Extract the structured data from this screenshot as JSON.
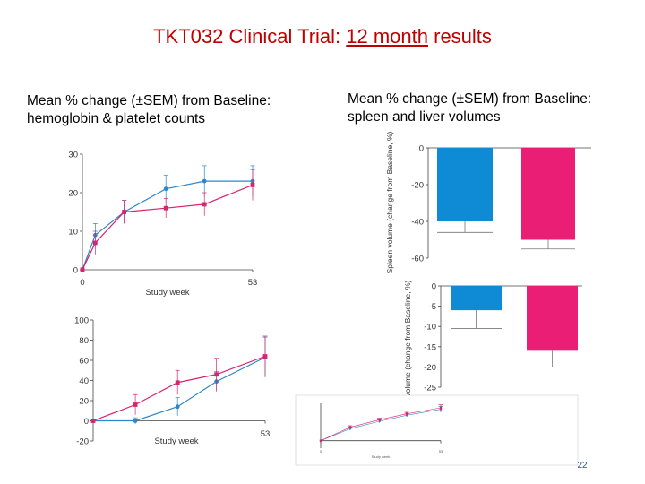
{
  "slide": {
    "title_prefix": "TKT032 Clinical Trial: ",
    "title_underlined": "12 month",
    "title_suffix": " results",
    "left_heading_line1": "Mean % change (±SEM) from Baseline:",
    "left_heading_line2": "hemoglobin & platelet counts",
    "right_heading_line1": "Mean % change (±SEM) from Baseline:",
    "right_heading_line2": "spleen and liver volumes",
    "page_number": "22"
  },
  "colors": {
    "title": "#c00000",
    "series_blue": "#2e86c8",
    "series_magenta": "#d6246e",
    "bar_blue": "#0f8bd6",
    "bar_magenta": "#e91e74"
  },
  "chart_data": [
    {
      "type": "line",
      "xlabel": "Study week",
      "ylabel": "",
      "xlim": [
        0,
        53
      ],
      "ylim": [
        0,
        30
      ],
      "yticks": [
        0,
        10,
        20,
        30
      ],
      "xticks": [
        0,
        53
      ],
      "series": [
        {
          "x": [
            0,
            4,
            13,
            26,
            38,
            53
          ],
          "values": [
            0,
            9,
            15,
            21,
            23,
            23
          ],
          "err": [
            0.5,
            3,
            3,
            3.5,
            4,
            4
          ]
        },
        {
          "x": [
            0,
            4,
            13,
            26,
            38,
            53
          ],
          "values": [
            0,
            7,
            15,
            16,
            17,
            22
          ],
          "err": [
            0.5,
            3,
            3,
            2.5,
            3,
            4
          ]
        }
      ]
    },
    {
      "type": "line",
      "xlabel": "Study week",
      "ylabel": "",
      "xlim": [
        0,
        53
      ],
      "ylim": [
        -20,
        100
      ],
      "yticks": [
        -20,
        0,
        20,
        40,
        60,
        80,
        100
      ],
      "xticks": [
        53
      ],
      "series": [
        {
          "x": [
            0,
            13,
            26,
            38,
            53
          ],
          "values": [
            0,
            0,
            14,
            39,
            63
          ],
          "err": [
            0,
            3,
            9,
            10,
            20
          ]
        },
        {
          "x": [
            0,
            13,
            26,
            38,
            53
          ],
          "values": [
            0,
            16,
            38,
            46,
            64
          ],
          "err": [
            0,
            10,
            12,
            16,
            20
          ]
        }
      ]
    },
    {
      "type": "bar",
      "ylabel": "Spleen volume (change from Baseline, %)",
      "ylim": [
        -60,
        0
      ],
      "yticks": [
        0,
        -20,
        -40,
        -60
      ],
      "series": [
        {
          "values": [
            -40
          ],
          "err": [
            6
          ]
        },
        {
          "values": [
            -50
          ],
          "err": [
            5
          ]
        }
      ]
    },
    {
      "type": "bar",
      "ylabel": "Liver volume (change from Baseline, %)",
      "ylim": [
        -25,
        0
      ],
      "yticks": [
        0,
        -5,
        -10,
        -15,
        -20,
        -25
      ],
      "series": [
        {
          "values": [
            -6
          ],
          "err": [
            4.5
          ]
        },
        {
          "values": [
            -16
          ],
          "err": [
            4
          ]
        }
      ]
    },
    {
      "type": "line",
      "xlabel": "Study week",
      "xlim": [
        0,
        53
      ],
      "ylim": [
        -5,
        25
      ],
      "xticks": [
        0,
        53
      ],
      "series": [
        {
          "x": [
            0,
            13,
            26,
            38,
            53
          ],
          "values": [
            0,
            8,
            13,
            17,
            21
          ],
          "err": [
            0,
            1,
            1,
            1,
            2
          ]
        },
        {
          "x": [
            0,
            13,
            26,
            38,
            53
          ],
          "values": [
            0,
            9,
            14,
            18,
            22
          ],
          "err": [
            0,
            1,
            1,
            1,
            2
          ]
        }
      ]
    }
  ]
}
